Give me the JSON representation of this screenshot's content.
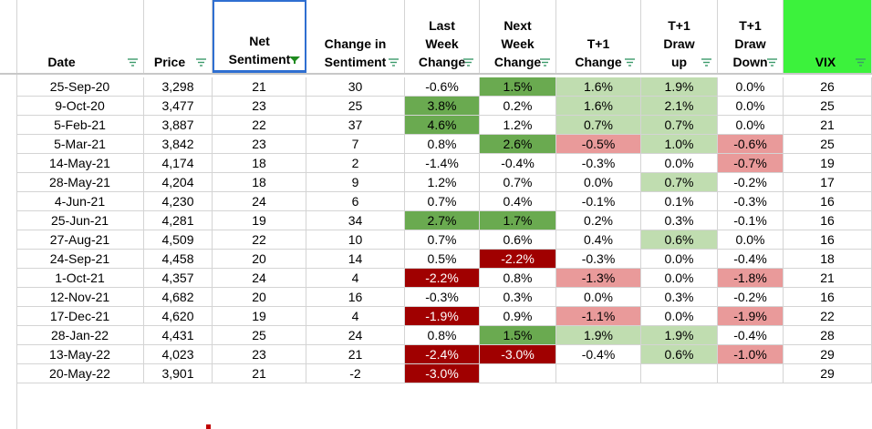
{
  "colors": {
    "header_vix_bg": "#3cf23c",
    "dark_green": "#6aaa50",
    "light_green": "#c0ddb0",
    "dark_red": "#a00000",
    "light_red": "#e99a9a",
    "grid_line": "#d4d4d4",
    "selection": "#2f6fd1"
  },
  "icons": {
    "filter": "filter-dropdown-icon",
    "filter_active": "filter-active-funnel-icon"
  },
  "columns": [
    {
      "key": "date",
      "lines": [
        "Date"
      ]
    },
    {
      "key": "price",
      "lines": [
        "Price"
      ]
    },
    {
      "key": "net",
      "lines": [
        "Net",
        "Sentiment"
      ],
      "filtered": true
    },
    {
      "key": "chg",
      "lines": [
        "Change in",
        "Sentiment"
      ]
    },
    {
      "key": "lw",
      "lines": [
        "Last",
        "Week",
        "Change"
      ]
    },
    {
      "key": "nw",
      "lines": [
        "Next",
        "Week",
        "Change"
      ]
    },
    {
      "key": "t1c",
      "lines": [
        "T+1",
        "Change"
      ]
    },
    {
      "key": "t1u",
      "lines": [
        "T+1",
        "Draw",
        "up"
      ]
    },
    {
      "key": "t1d",
      "lines": [
        "T+1",
        "Draw",
        "Down"
      ]
    },
    {
      "key": "vix",
      "lines": [
        "VIX"
      ]
    }
  ],
  "rows": [
    {
      "date": "25-Sep-20",
      "price": "3,298",
      "net": "21",
      "chg": "30",
      "lw": "-0.6%",
      "nw": "1.5%",
      "t1c": "1.6%",
      "t1u": "1.9%",
      "t1d": "0.0%",
      "vix": "26",
      "fill": {
        "nw": "dark_green",
        "t1c": "light_green",
        "t1u": "light_green"
      }
    },
    {
      "date": "9-Oct-20",
      "price": "3,477",
      "net": "23",
      "chg": "25",
      "lw": "3.8%",
      "nw": "0.2%",
      "t1c": "1.6%",
      "t1u": "2.1%",
      "t1d": "0.0%",
      "vix": "25",
      "fill": {
        "lw": "dark_green",
        "t1c": "light_green",
        "t1u": "light_green"
      }
    },
    {
      "date": "5-Feb-21",
      "price": "3,887",
      "net": "22",
      "chg": "37",
      "lw": "4.6%",
      "nw": "1.2%",
      "t1c": "0.7%",
      "t1u": "0.7%",
      "t1d": "0.0%",
      "vix": "21",
      "fill": {
        "lw": "dark_green",
        "t1c": "light_green",
        "t1u": "light_green"
      }
    },
    {
      "date": "5-Mar-21",
      "price": "3,842",
      "net": "23",
      "chg": "7",
      "lw": "0.8%",
      "nw": "2.6%",
      "t1c": "-0.5%",
      "t1u": "1.0%",
      "t1d": "-0.6%",
      "vix": "25",
      "fill": {
        "nw": "dark_green",
        "t1c": "light_red",
        "t1u": "light_green",
        "t1d": "light_red"
      }
    },
    {
      "date": "14-May-21",
      "price": "4,174",
      "net": "18",
      "chg": "2",
      "lw": "-1.4%",
      "nw": "-0.4%",
      "t1c": "-0.3%",
      "t1u": "0.0%",
      "t1d": "-0.7%",
      "vix": "19",
      "fill": {
        "t1d": "light_red"
      }
    },
    {
      "date": "28-May-21",
      "price": "4,204",
      "net": "18",
      "chg": "9",
      "lw": "1.2%",
      "nw": "0.7%",
      "t1c": "0.0%",
      "t1u": "0.7%",
      "t1d": "-0.2%",
      "vix": "17",
      "fill": {
        "t1u": "light_green"
      }
    },
    {
      "date": "4-Jun-21",
      "price": "4,230",
      "net": "24",
      "chg": "6",
      "lw": "0.7%",
      "nw": "0.4%",
      "t1c": "-0.1%",
      "t1u": "0.1%",
      "t1d": "-0.3%",
      "vix": "16",
      "fill": {}
    },
    {
      "date": "25-Jun-21",
      "price": "4,281",
      "net": "19",
      "chg": "34",
      "lw": "2.7%",
      "nw": "1.7%",
      "t1c": "0.2%",
      "t1u": "0.3%",
      "t1d": "-0.1%",
      "vix": "16",
      "fill": {
        "lw": "dark_green",
        "nw": "dark_green"
      }
    },
    {
      "date": "27-Aug-21",
      "price": "4,509",
      "net": "22",
      "chg": "10",
      "lw": "0.7%",
      "nw": "0.6%",
      "t1c": "0.4%",
      "t1u": "0.6%",
      "t1d": "0.0%",
      "vix": "16",
      "fill": {
        "t1u": "light_green"
      }
    },
    {
      "date": "24-Sep-21",
      "price": "4,458",
      "net": "20",
      "chg": "14",
      "lw": "0.5%",
      "nw": "-2.2%",
      "t1c": "-0.3%",
      "t1u": "0.0%",
      "t1d": "-0.4%",
      "vix": "18",
      "fill": {
        "nw": "dark_red"
      }
    },
    {
      "date": "1-Oct-21",
      "price": "4,357",
      "net": "24",
      "chg": "4",
      "lw": "-2.2%",
      "nw": "0.8%",
      "t1c": "-1.3%",
      "t1u": "0.0%",
      "t1d": "-1.8%",
      "vix": "21",
      "fill": {
        "lw": "dark_red",
        "t1c": "light_red",
        "t1d": "light_red"
      }
    },
    {
      "date": "12-Nov-21",
      "price": "4,682",
      "net": "20",
      "chg": "16",
      "lw": "-0.3%",
      "nw": "0.3%",
      "t1c": "0.0%",
      "t1u": "0.3%",
      "t1d": "-0.2%",
      "vix": "16",
      "fill": {}
    },
    {
      "date": "17-Dec-21",
      "price": "4,620",
      "net": "19",
      "chg": "4",
      "lw": "-1.9%",
      "nw": "0.9%",
      "t1c": "-1.1%",
      "t1u": "0.0%",
      "t1d": "-1.9%",
      "vix": "22",
      "fill": {
        "lw": "dark_red",
        "t1c": "light_red",
        "t1d": "light_red"
      }
    },
    {
      "date": "28-Jan-22",
      "price": "4,431",
      "net": "25",
      "chg": "24",
      "lw": "0.8%",
      "nw": "1.5%",
      "t1c": "1.9%",
      "t1u": "1.9%",
      "t1d": "-0.4%",
      "vix": "28",
      "fill": {
        "nw": "dark_green",
        "t1c": "light_green",
        "t1u": "light_green"
      }
    },
    {
      "date": "13-May-22",
      "price": "4,023",
      "net": "23",
      "chg": "21",
      "lw": "-2.4%",
      "nw": "-3.0%",
      "t1c": "-0.4%",
      "t1u": "0.6%",
      "t1d": "-1.0%",
      "vix": "29",
      "fill": {
        "lw": "dark_red",
        "nw": "dark_red",
        "t1u": "light_green",
        "t1d": "light_red"
      }
    },
    {
      "date": "20-May-22",
      "price": "3,901",
      "net": "21",
      "chg": "-2",
      "lw": "-3.0%",
      "nw": "",
      "t1c": "",
      "t1u": "",
      "t1d": "",
      "vix": "29",
      "fill": {
        "lw": "dark_red"
      }
    }
  ]
}
